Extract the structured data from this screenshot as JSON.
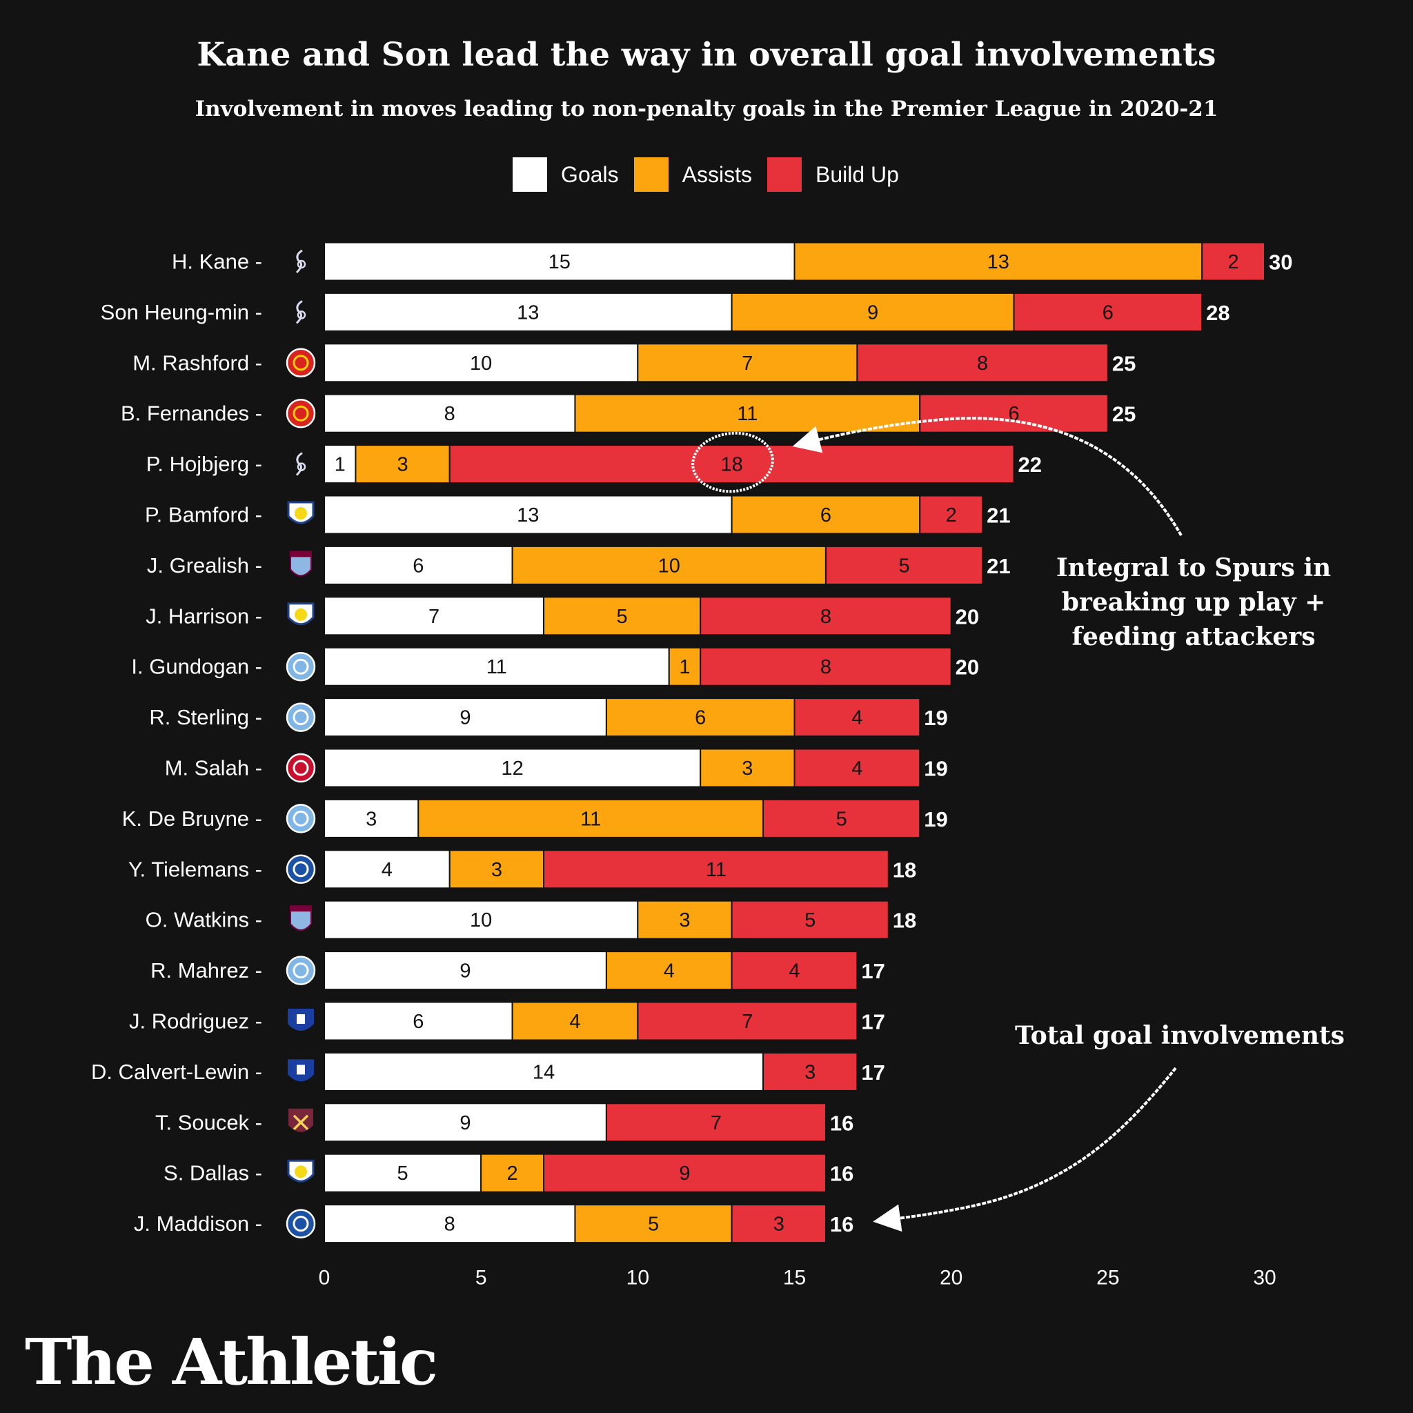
{
  "chart_data": {
    "type": "bar",
    "orientation": "horizontal",
    "stacked": true,
    "title": "Kane and Son lead the way in overall goal involvements",
    "subtitle": "Involvement in moves leading to non-penalty goals in the Premier League in 2020-21",
    "xlim": [
      0,
      30
    ],
    "x_ticks": [
      "0",
      "5",
      "10",
      "15",
      "20",
      "25",
      "30"
    ],
    "grid": false,
    "legend_position": "top-center",
    "series": [
      {
        "name": "Goals",
        "color": "#ffffff",
        "text_color": "#131313"
      },
      {
        "name": "Assists",
        "color": "#fda50f",
        "text_color": "#131313"
      },
      {
        "name": "Build Up",
        "color": "#e8323b",
        "text_color": "#131313"
      }
    ],
    "players": [
      {
        "name": "H. Kane",
        "club_icon": "tottenham-crest-icon",
        "goals": 15,
        "assists": 13,
        "build_up": 2,
        "total": 30
      },
      {
        "name": "Son Heung-min",
        "club_icon": "tottenham-crest-icon",
        "goals": 13,
        "assists": 9,
        "build_up": 6,
        "total": 28
      },
      {
        "name": "M. Rashford",
        "club_icon": "man-united-crest-icon",
        "goals": 10,
        "assists": 7,
        "build_up": 8,
        "total": 25
      },
      {
        "name": "B. Fernandes",
        "club_icon": "man-united-crest-icon",
        "goals": 8,
        "assists": 11,
        "build_up": 6,
        "total": 25
      },
      {
        "name": "P. Hojbjerg",
        "club_icon": "tottenham-crest-icon",
        "goals": 1,
        "assists": 3,
        "build_up": 18,
        "total": 22
      },
      {
        "name": "P. Bamford",
        "club_icon": "leeds-crest-icon",
        "goals": 13,
        "assists": 6,
        "build_up": 2,
        "total": 21
      },
      {
        "name": "J. Grealish",
        "club_icon": "aston-villa-crest-icon",
        "goals": 6,
        "assists": 10,
        "build_up": 5,
        "total": 21
      },
      {
        "name": "J. Harrison",
        "club_icon": "leeds-crest-icon",
        "goals": 7,
        "assists": 5,
        "build_up": 8,
        "total": 20
      },
      {
        "name": "I. Gundogan",
        "club_icon": "man-city-crest-icon",
        "goals": 11,
        "assists": 1,
        "build_up": 8,
        "total": 20
      },
      {
        "name": "R. Sterling",
        "club_icon": "man-city-crest-icon",
        "goals": 9,
        "assists": 6,
        "build_up": 4,
        "total": 19
      },
      {
        "name": "M. Salah",
        "club_icon": "liverpool-crest-icon",
        "goals": 12,
        "assists": 3,
        "build_up": 4,
        "total": 19
      },
      {
        "name": "K. De Bruyne",
        "club_icon": "man-city-crest-icon",
        "goals": 3,
        "assists": 11,
        "build_up": 5,
        "total": 19
      },
      {
        "name": "Y. Tielemans",
        "club_icon": "leicester-crest-icon",
        "goals": 4,
        "assists": 3,
        "build_up": 11,
        "total": 18
      },
      {
        "name": "O. Watkins",
        "club_icon": "aston-villa-crest-icon",
        "goals": 10,
        "assists": 3,
        "build_up": 5,
        "total": 18
      },
      {
        "name": "R. Mahrez",
        "club_icon": "man-city-crest-icon",
        "goals": 9,
        "assists": 4,
        "build_up": 4,
        "total": 17
      },
      {
        "name": "J. Rodriguez",
        "club_icon": "everton-crest-icon",
        "goals": 6,
        "assists": 4,
        "build_up": 7,
        "total": 17
      },
      {
        "name": "D. Calvert-Lewin",
        "club_icon": "everton-crest-icon",
        "goals": 14,
        "assists": 0,
        "build_up": 3,
        "total": 17
      },
      {
        "name": "T. Soucek",
        "club_icon": "west-ham-crest-icon",
        "goals": 9,
        "assists": 0,
        "build_up": 7,
        "total": 16
      },
      {
        "name": "S. Dallas",
        "club_icon": "leeds-crest-icon",
        "goals": 5,
        "assists": 2,
        "build_up": 9,
        "total": 16
      },
      {
        "name": "J. Maddison",
        "club_icon": "leicester-crest-icon",
        "goals": 8,
        "assists": 5,
        "build_up": 3,
        "total": 16
      }
    ],
    "annotations": [
      {
        "text": "Integral to Spurs in breaking up play + feeding attackers",
        "target_player": "P. Hojbjerg"
      },
      {
        "text": "Total goal involvements",
        "target_player": "J. Maddison"
      }
    ]
  },
  "crest_colors": {
    "tottenham-crest-icon": "#1a1e5c",
    "man-united-crest-icon": "#d8231f",
    "leeds-crest-icon": "#f5d916",
    "aston-villa-crest-icon": "#8fb7e3",
    "man-city-crest-icon": "#7fb6e6",
    "liverpool-crest-icon": "#c8102e",
    "leicester-crest-icon": "#1b52a5",
    "everton-crest-icon": "#1b3fa0",
    "west-ham-crest-icon": "#7a263a"
  },
  "brand": {
    "name": "The Athletic"
  }
}
